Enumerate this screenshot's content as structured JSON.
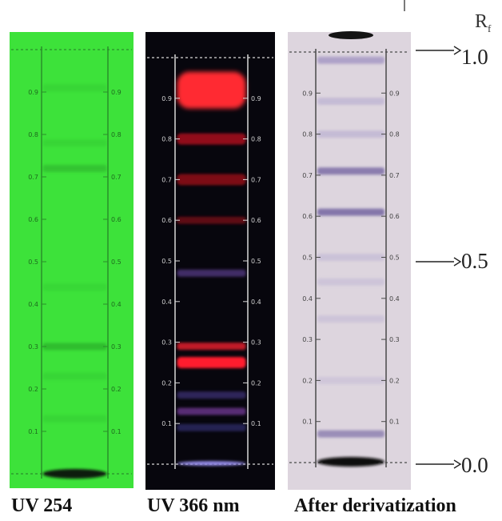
{
  "plates": [
    {
      "id": "uv254",
      "label": "UV 254",
      "colors": {
        "background": "#3de23a",
        "border": "#2a8f2a",
        "tick_text": "#1e6b1e"
      },
      "tick_values": [
        "0.9",
        "0.8",
        "0.7",
        "0.6",
        "0.5",
        "0.4",
        "0.3",
        "0.2",
        "0.1"
      ],
      "bands": [
        {
          "rf": 0.91,
          "color": "#2fbf2f",
          "opacity": 0.35
        },
        {
          "rf": 0.78,
          "color": "#2fbf2f",
          "opacity": 0.35
        },
        {
          "rf": 0.72,
          "color": "#2aa82a",
          "opacity": 0.5
        },
        {
          "rf": 0.44,
          "color": "#2fbf2f",
          "opacity": 0.3
        },
        {
          "rf": 0.3,
          "color": "#27a627",
          "opacity": 0.6
        },
        {
          "rf": 0.23,
          "color": "#2fbf2f",
          "opacity": 0.35
        },
        {
          "rf": 0.13,
          "color": "#2fbf2f",
          "opacity": 0.35
        }
      ],
      "origin_spot": {
        "color": "#0d1a0d"
      }
    },
    {
      "id": "uv366",
      "label": "UV 366 nm",
      "colors": {
        "background": "#07060d",
        "border": "#d8d8d8",
        "tick_text": "#d0d0d0"
      },
      "tick_values": [
        "0.9",
        "0.8",
        "0.7",
        "0.6",
        "0.5",
        "0.4",
        "0.3",
        "0.2",
        "0.1"
      ],
      "bands": [
        {
          "rf": 0.92,
          "color": "#ff2a33",
          "opacity": 1.0
        },
        {
          "rf": 0.8,
          "color": "#a0101c",
          "opacity": 0.9
        },
        {
          "rf": 0.7,
          "color": "#8a0c16",
          "opacity": 0.9
        },
        {
          "rf": 0.6,
          "color": "#6e0a12",
          "opacity": 0.85
        },
        {
          "rf": 0.47,
          "color": "#5a3c8c",
          "opacity": 0.7
        },
        {
          "rf": 0.29,
          "color": "#ff2430",
          "opacity": 0.75
        },
        {
          "rf": 0.25,
          "color": "#ff1f2d",
          "opacity": 1.0
        },
        {
          "rf": 0.17,
          "color": "#4a3a8c",
          "opacity": 0.6
        },
        {
          "rf": 0.13,
          "color": "#7a3ca0",
          "opacity": 0.7
        },
        {
          "rf": 0.09,
          "color": "#3c3a8c",
          "opacity": 0.55
        }
      ],
      "origin_spot": {
        "color": "#8f86e0"
      }
    },
    {
      "id": "derivatized",
      "label": "After derivatization",
      "colors": {
        "background": "#ddd5de",
        "border": "#4a4a4a",
        "tick_text": "#444444"
      },
      "tick_values": [
        "0.9",
        "0.8",
        "0.7",
        "0.6",
        "0.5",
        "0.4",
        "0.3",
        "0.2",
        "0.1"
      ],
      "bands": [
        {
          "rf": 0.98,
          "color": "#8878b6",
          "opacity": 0.55
        },
        {
          "rf": 0.88,
          "color": "#a89ccb",
          "opacity": 0.45
        },
        {
          "rf": 0.8,
          "color": "#a89ccb",
          "opacity": 0.45
        },
        {
          "rf": 0.71,
          "color": "#6e5e9e",
          "opacity": 0.75
        },
        {
          "rf": 0.61,
          "color": "#6e5e9e",
          "opacity": 0.8
        },
        {
          "rf": 0.5,
          "color": "#b0a6cf",
          "opacity": 0.4
        },
        {
          "rf": 0.44,
          "color": "#b0a6cf",
          "opacity": 0.35
        },
        {
          "rf": 0.35,
          "color": "#b0a6cf",
          "opacity": 0.35
        },
        {
          "rf": 0.2,
          "color": "#b0a6cf",
          "opacity": 0.3
        },
        {
          "rf": 0.07,
          "color": "#6e5e9e",
          "opacity": 0.6
        }
      ],
      "origin_spot": {
        "color": "#101010"
      }
    }
  ],
  "rf_axis": {
    "symbol_main": "R",
    "symbol_sub": "f",
    "markers": [
      {
        "rf": 1.0,
        "text": "1.0"
      },
      {
        "rf": 0.5,
        "text": "0.5"
      },
      {
        "rf": 0.0,
        "text": "0.0"
      }
    ]
  }
}
